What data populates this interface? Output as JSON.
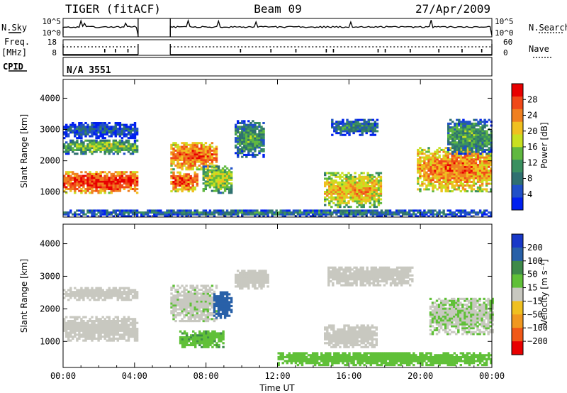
{
  "header": {
    "radar": "TIGER (fitACF)",
    "beam": "Beam 09",
    "date": "27/Apr/2009"
  },
  "panels": {
    "nsky_label": "N.Sky",
    "nsearch_label": "N.Search",
    "freq_label_1": "Freq.",
    "freq_label_2": "[MHz]",
    "nave_label": "Nave",
    "cpid_label": "CPID",
    "cpid_value": "N/A 3551",
    "noise_ticks_left": [
      "10^5",
      "10^0"
    ],
    "noise_ticks_right": [
      "10^5",
      "10^0"
    ],
    "freq_ticks_left": [
      "18",
      "8"
    ],
    "nave_ticks_right": [
      "60",
      "0"
    ]
  },
  "colors": {
    "axis": "#000000",
    "background": "#ffffff",
    "ground_scatter": "#c8c8c0"
  },
  "chart_data": [
    {
      "type": "heatmap",
      "name": "power",
      "title": "",
      "xlabel": "",
      "ylabel": "Slant Range [km]",
      "xlim": [
        0,
        24
      ],
      "ylim": [
        200,
        4600
      ],
      "x_tick_labels": [
        "00:00",
        "04:00",
        "08:00",
        "12:00",
        "16:00",
        "20:00",
        "00:00"
      ],
      "y_ticks": [
        1000,
        2000,
        3000,
        4000
      ],
      "colorbar": {
        "label": "Power [dB]",
        "ticks": [
          4,
          8,
          12,
          16,
          20,
          24,
          28
        ],
        "range": [
          0,
          32
        ],
        "colors": [
          "#0020f0",
          "#2050c8",
          "#2f7070",
          "#3a9060",
          "#60b840",
          "#c8e020",
          "#f0c020",
          "#f08020",
          "#f04818",
          "#e80000"
        ]
      },
      "echo_regions": [
        {
          "t0": 0.0,
          "t1": 4.2,
          "r0": 950,
          "r1": 1650,
          "power": 29
        },
        {
          "t0": 0.0,
          "t1": 4.2,
          "r0": 2200,
          "r1": 2650,
          "power": 16
        },
        {
          "t0": 0.0,
          "t1": 4.2,
          "r0": 2700,
          "r1": 3200,
          "power": 7
        },
        {
          "t0": 6.0,
          "t1": 8.6,
          "r0": 1700,
          "r1": 2600,
          "power": 26
        },
        {
          "t0": 6.0,
          "t1": 7.5,
          "r0": 1000,
          "r1": 1650,
          "power": 27
        },
        {
          "t0": 7.8,
          "t1": 9.4,
          "r0": 950,
          "r1": 1800,
          "power": 18
        },
        {
          "t0": 9.6,
          "t1": 11.2,
          "r0": 2100,
          "r1": 3300,
          "power": 12
        },
        {
          "t0": 14.6,
          "t1": 17.8,
          "r0": 500,
          "r1": 1600,
          "power": 22
        },
        {
          "t0": 15.0,
          "t1": 17.6,
          "r0": 2800,
          "r1": 3300,
          "power": 10
        },
        {
          "t0": 19.8,
          "t1": 24.0,
          "r0": 1000,
          "r1": 2400,
          "power": 25
        },
        {
          "t0": 21.5,
          "t1": 24.0,
          "r0": 2200,
          "r1": 3300,
          "power": 13
        },
        {
          "t0": 0.0,
          "t1": 24.0,
          "r0": 200,
          "r1": 420,
          "power": 9
        }
      ]
    },
    {
      "type": "heatmap",
      "name": "velocity",
      "title": "",
      "xlabel": "Time UT",
      "ylabel": "Slant Range [km]",
      "xlim": [
        0,
        24
      ],
      "ylim": [
        200,
        4600
      ],
      "x_tick_labels": [
        "00:00",
        "04:00",
        "08:00",
        "12:00",
        "16:00",
        "20:00",
        "00:00"
      ],
      "y_ticks": [
        1000,
        2000,
        3000,
        4000
      ],
      "colorbar": {
        "label": "Velocity [m s⁻¹]",
        "ticks": [
          "200",
          "100",
          "50",
          "15",
          "−15",
          "−50",
          "−100",
          "−200"
        ],
        "colors": [
          "#1838c8",
          "#2860a8",
          "#3e8a4a",
          "#60c038",
          "#c8c8c0",
          "#f0c020",
          "#f09820",
          "#f05818",
          "#e80000"
        ]
      },
      "echo_regions": [
        {
          "t0": 0.0,
          "t1": 4.2,
          "r0": 1000,
          "r1": 1750,
          "velocity": 0
        },
        {
          "t0": 0.0,
          "t1": 4.2,
          "r0": 2250,
          "r1": 2650,
          "velocity": 0
        },
        {
          "t0": 6.0,
          "t1": 8.6,
          "r0": 1600,
          "r1": 2700,
          "velocity": 5
        },
        {
          "t0": 6.5,
          "t1": 9.0,
          "r0": 800,
          "r1": 1300,
          "velocity": 40
        },
        {
          "t0": 8.4,
          "t1": 9.4,
          "r0": 1700,
          "r1": 2500,
          "velocity": 150
        },
        {
          "t0": 9.6,
          "t1": 11.5,
          "r0": 2600,
          "r1": 3200,
          "velocity": 0
        },
        {
          "t0": 14.6,
          "t1": 17.5,
          "r0": 800,
          "r1": 1500,
          "velocity": 0
        },
        {
          "t0": 14.8,
          "t1": 19.5,
          "r0": 2700,
          "r1": 3300,
          "velocity": 0
        },
        {
          "t0": 20.5,
          "t1": 24.0,
          "r0": 1200,
          "r1": 2300,
          "velocity": 10
        },
        {
          "t0": 12.0,
          "t1": 24.0,
          "r0": 250,
          "r1": 650,
          "velocity": 30
        }
      ]
    }
  ]
}
